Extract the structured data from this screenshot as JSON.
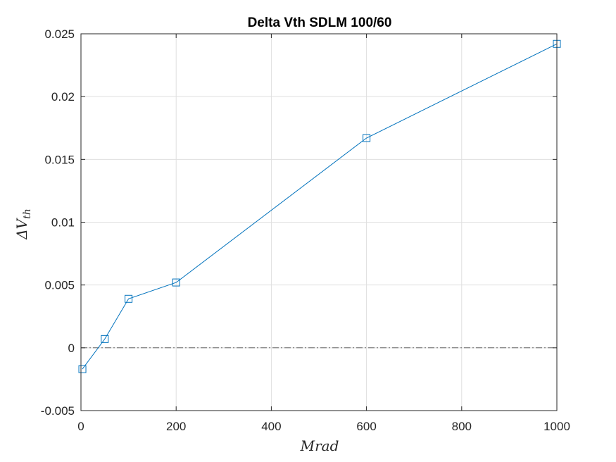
{
  "chart_data": {
    "type": "line",
    "title": "Delta Vth SDLM 100/60",
    "xlabel": "Mrad",
    "ylabel": {
      "symbol": "ΔV",
      "subscript": "th"
    },
    "xlim": [
      0,
      1000
    ],
    "ylim": [
      -0.005,
      0.025
    ],
    "xticks": [
      0,
      200,
      400,
      600,
      800,
      1000
    ],
    "xtick_labels": [
      "0",
      "200",
      "400",
      "600",
      "800",
      "1000"
    ],
    "yticks": [
      -0.005,
      0,
      0.005,
      0.01,
      0.015,
      0.02,
      0.025
    ],
    "ytick_labels": [
      "-0.005",
      "0",
      "0.005",
      "0.01",
      "0.015",
      "0.02",
      "0.025"
    ],
    "grid": true,
    "reference_line": {
      "y": 0,
      "style": "dash-dot"
    },
    "series": [
      {
        "marker": "square",
        "color": "#0072BD",
        "points": [
          {
            "x": 3,
            "y": -0.0017
          },
          {
            "x": 50,
            "y": 0.0007
          },
          {
            "x": 100,
            "y": 0.0039
          },
          {
            "x": 200,
            "y": 0.0052
          },
          {
            "x": 600,
            "y": 0.0167
          },
          {
            "x": 1000,
            "y": 0.0242
          }
        ]
      }
    ]
  }
}
